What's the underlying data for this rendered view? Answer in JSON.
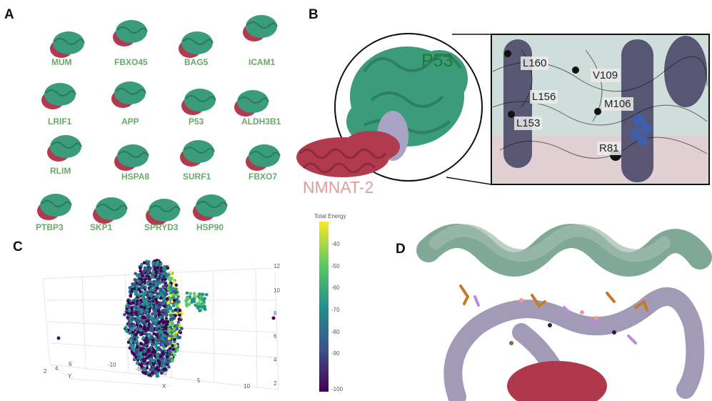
{
  "panels": {
    "a": "A",
    "b": "B",
    "c": "C",
    "d": "D"
  },
  "panel_a": {
    "proteins": [
      "MUM",
      "FBXO45",
      "BAG5",
      "ICAM1",
      "LRIF1",
      "APP",
      "P53",
      "ALDH3B1",
      "RLIM",
      "HSPA8",
      "SURF1",
      "FBXO7",
      "PTBP3",
      "SKP1",
      "SPRYD3",
      "HSP90"
    ]
  },
  "panel_b": {
    "protein_top": "P53",
    "protein_bottom": "NMNAT-2",
    "residues": [
      "L160",
      "V109",
      "L156",
      "M106",
      "L153",
      "R81"
    ]
  },
  "panel_c": {
    "colorbar_title": "Total Energy",
    "colorbar_ticks": [
      "-40",
      "-50",
      "-60",
      "-70",
      "-80",
      "-90",
      "-100"
    ],
    "z_ticks": [
      "12",
      "10",
      "8",
      "6",
      "4",
      "2"
    ],
    "x_label": "X",
    "x_ticks": [
      "-10",
      "-5",
      "0",
      "5",
      "10"
    ],
    "y_label": "Y",
    "y_ticks": [
      "2",
      "4",
      "6"
    ]
  },
  "colors": {
    "green": "#3a9c7a",
    "red": "#b23a4e",
    "lavender": "#a9a3c4",
    "label_green": "#6aa86b",
    "nmnat": "#e29b9b"
  }
}
